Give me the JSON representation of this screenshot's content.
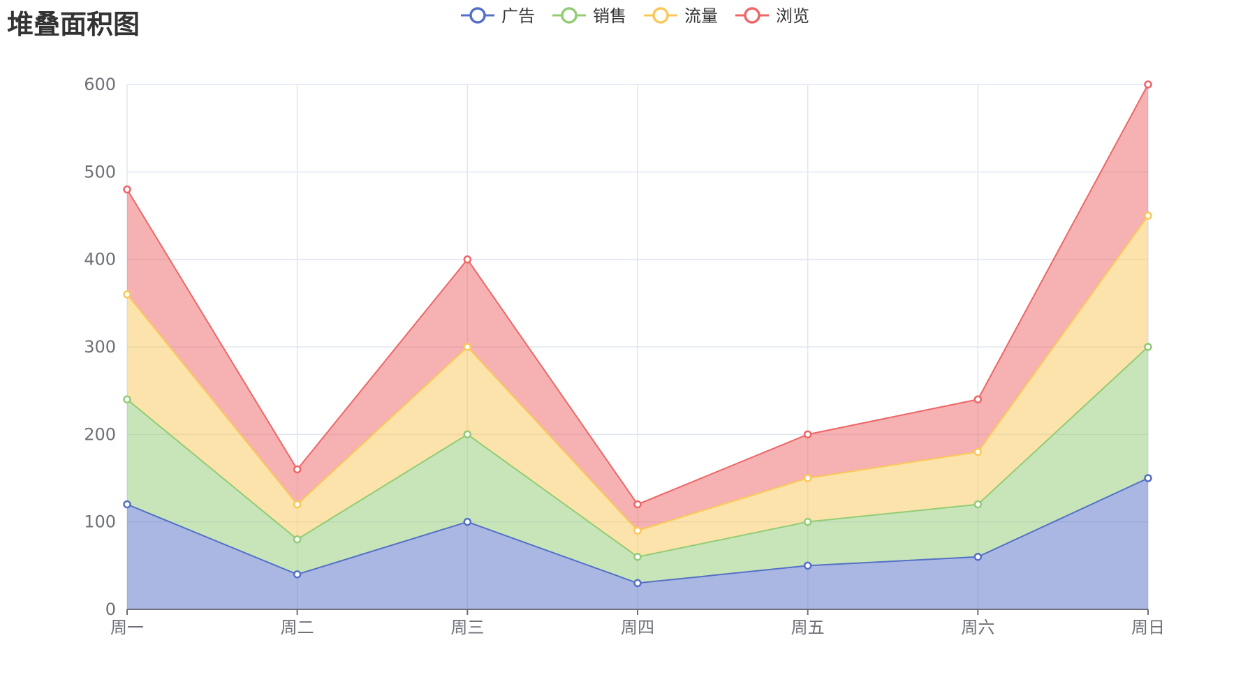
{
  "chart_data": {
    "type": "area",
    "stacked": true,
    "title": "堆叠面积图",
    "xlabel": "",
    "ylabel": "",
    "categories": [
      "周一",
      "周二",
      "周三",
      "周四",
      "周五",
      "周六",
      "周日"
    ],
    "ylim": [
      0,
      600
    ],
    "yticks": [
      0,
      100,
      200,
      300,
      400,
      500,
      600
    ],
    "grid": true,
    "legend_position": "top-center",
    "series": [
      {
        "name": "广告",
        "color": "#5470c6",
        "values": [
          120,
          40,
          100,
          30,
          50,
          60,
          150
        ]
      },
      {
        "name": "销售",
        "color": "#91cc75",
        "values": [
          120,
          40,
          100,
          30,
          50,
          60,
          150
        ]
      },
      {
        "name": "流量",
        "color": "#fac858",
        "values": [
          120,
          40,
          100,
          30,
          50,
          60,
          150
        ]
      },
      {
        "name": "浏览",
        "color": "#ee6666",
        "values": [
          120,
          40,
          100,
          30,
          50,
          60,
          150
        ]
      }
    ]
  }
}
